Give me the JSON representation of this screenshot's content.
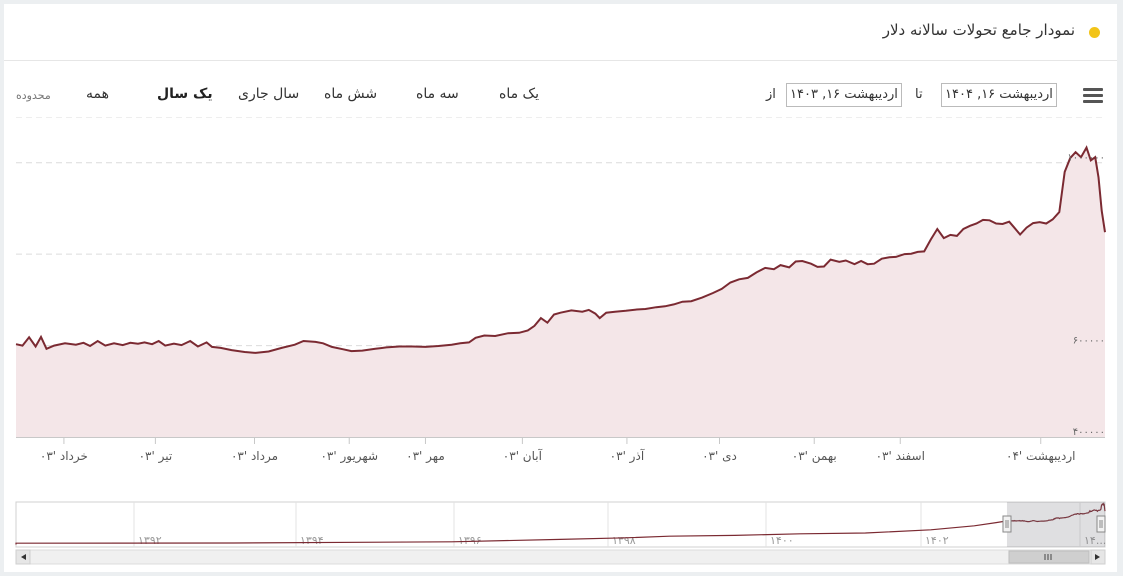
{
  "header": {
    "title": "نمودار جامع تحولات سالانه دلار",
    "dot_color": "#f2c418"
  },
  "toolbar": {
    "zoom_label": "محدوده",
    "buttons": [
      "همه",
      "یک سال",
      "سال جاری",
      "شش ماه",
      "سه ماه",
      "یک ماه"
    ],
    "active_button": "یک سال",
    "from_label": "از",
    "to_label": "تا",
    "from_value": "اردیبهشت ۱۶, ۱۴۰۳",
    "to_value": "اردیبهشت ۱۶, ۱۴۰۴",
    "menu_icon": "hamburger-menu-icon"
  },
  "chart_data": {
    "type": "area",
    "title": "",
    "ylim": [
      400000,
      1100000
    ],
    "y_ticks": [
      400000,
      600000,
      800000,
      1000000
    ],
    "y_tick_labels": [
      "۴۰۰۰۰۰",
      "۶۰۰۰۰۰",
      "",
      "۱۰۰۰۰۰۰"
    ],
    "x_tick_labels": [
      "خرداد '۰۳",
      "تیر '۰۳",
      "مرداد '۰۳",
      "شهریور '۰۳",
      "مهر '۰۳",
      "آبان '۰۳",
      "آذر '۰۳",
      "دی '۰۳",
      "بهمن '۰۳",
      "اسفند '۰۳",
      "اردیبهشت '۰۴"
    ],
    "x_tick_pos": [
      0.044,
      0.128,
      0.219,
      0.306,
      0.376,
      0.465,
      0.561,
      0.646,
      0.733,
      0.812,
      0.941
    ],
    "grid": true,
    "line_color": "#7b2a32",
    "fill_color": "#f4e6e8",
    "series": [
      {
        "values": [
          [
            0.0,
            603000
          ],
          [
            0.006,
            600000
          ],
          [
            0.012,
            618000
          ],
          [
            0.018,
            598000
          ],
          [
            0.023,
            619000
          ],
          [
            0.028,
            593000
          ],
          [
            0.035,
            600000
          ],
          [
            0.045,
            605000
          ],
          [
            0.055,
            602000
          ],
          [
            0.062,
            606000
          ],
          [
            0.068,
            599000
          ],
          [
            0.075,
            610000
          ],
          [
            0.082,
            600000
          ],
          [
            0.09,
            605000
          ],
          [
            0.098,
            601000
          ],
          [
            0.105,
            606000
          ],
          [
            0.112,
            604000
          ],
          [
            0.118,
            607000
          ],
          [
            0.125,
            603000
          ],
          [
            0.131,
            610000
          ],
          [
            0.137,
            600000
          ],
          [
            0.145,
            604000
          ],
          [
            0.152,
            601000
          ],
          [
            0.16,
            610000
          ],
          [
            0.167,
            598000
          ],
          [
            0.175,
            607000
          ],
          [
            0.18,
            597000
          ],
          [
            0.188,
            595000
          ],
          [
            0.198,
            590000
          ],
          [
            0.21,
            586000
          ],
          [
            0.22,
            584000
          ],
          [
            0.232,
            587000
          ],
          [
            0.244,
            595000
          ],
          [
            0.256,
            602000
          ],
          [
            0.264,
            610000
          ],
          [
            0.275,
            608000
          ],
          [
            0.282,
            605000
          ],
          [
            0.29,
            597000
          ],
          [
            0.3,
            592000
          ],
          [
            0.308,
            588000
          ],
          [
            0.318,
            589000
          ],
          [
            0.33,
            593000
          ],
          [
            0.34,
            596000
          ],
          [
            0.352,
            598000
          ],
          [
            0.364,
            598000
          ],
          [
            0.376,
            597000
          ],
          [
            0.388,
            599000
          ],
          [
            0.4,
            602000
          ],
          [
            0.408,
            605000
          ],
          [
            0.416,
            607000
          ],
          [
            0.422,
            617000
          ],
          [
            0.43,
            622000
          ],
          [
            0.44,
            621000
          ],
          [
            0.452,
            627000
          ],
          [
            0.462,
            628000
          ],
          [
            0.47,
            633000
          ],
          [
            0.476,
            643000
          ],
          [
            0.482,
            660000
          ],
          [
            0.488,
            650000
          ],
          [
            0.494,
            668000
          ],
          [
            0.5,
            672000
          ],
          [
            0.51,
            677000
          ],
          [
            0.52,
            674000
          ],
          [
            0.526,
            678000
          ],
          [
            0.532,
            670000
          ],
          [
            0.536,
            660000
          ],
          [
            0.542,
            672000
          ],
          [
            0.55,
            674000
          ],
          [
            0.56,
            676000
          ],
          [
            0.57,
            679000
          ],
          [
            0.578,
            680000
          ],
          [
            0.588,
            684000
          ],
          [
            0.596,
            686000
          ],
          [
            0.604,
            690000
          ],
          [
            0.612,
            696000
          ],
          [
            0.62,
            697000
          ],
          [
            0.63,
            705000
          ],
          [
            0.64,
            715000
          ],
          [
            0.648,
            724000
          ],
          [
            0.656,
            738000
          ],
          [
            0.664,
            745000
          ],
          [
            0.672,
            748000
          ],
          [
            0.68,
            760000
          ],
          [
            0.688,
            770000
          ],
          [
            0.696,
            767000
          ],
          [
            0.702,
            776000
          ],
          [
            0.71,
            771000
          ],
          [
            0.716,
            784000
          ],
          [
            0.722,
            785000
          ],
          [
            0.73,
            779000
          ],
          [
            0.736,
            772000
          ],
          [
            0.742,
            773000
          ],
          [
            0.748,
            788000
          ],
          [
            0.756,
            783000
          ],
          [
            0.762,
            786000
          ],
          [
            0.77,
            778000
          ],
          [
            0.776,
            785000
          ],
          [
            0.782,
            778000
          ],
          [
            0.788,
            779000
          ],
          [
            0.795,
            790000
          ],
          [
            0.802,
            793000
          ],
          [
            0.808,
            794000
          ],
          [
            0.816,
            800000
          ],
          [
            0.822,
            801000
          ],
          [
            0.828,
            805000
          ],
          [
            0.834,
            806000
          ],
          [
            0.84,
            832000
          ],
          [
            0.846,
            855000
          ],
          [
            0.852,
            835000
          ],
          [
            0.858,
            842000
          ],
          [
            0.864,
            840000
          ],
          [
            0.87,
            855000
          ],
          [
            0.876,
            862000
          ],
          [
            0.882,
            867000
          ],
          [
            0.888,
            875000
          ],
          [
            0.894,
            874000
          ],
          [
            0.9,
            867000
          ],
          [
            0.906,
            866000
          ],
          [
            0.912,
            871000
          ],
          [
            0.916,
            860000
          ],
          [
            0.922,
            843000
          ],
          [
            0.928,
            858000
          ],
          [
            0.934,
            868000
          ],
          [
            0.94,
            870000
          ],
          [
            0.946,
            867000
          ],
          [
            0.952,
            876000
          ],
          [
            0.958,
            892000
          ],
          [
            0.963,
            980000
          ],
          [
            0.968,
            1010000
          ],
          [
            0.973,
            1023000
          ],
          [
            0.978,
            1012000
          ],
          [
            0.983,
            1033000
          ],
          [
            0.987,
            1005000
          ],
          [
            0.991,
            1012000
          ],
          [
            0.994,
            968000
          ],
          [
            0.997,
            895000
          ],
          [
            1.0,
            848000
          ]
        ]
      }
    ]
  },
  "navigator": {
    "labels": [
      "۱۳۹۲",
      "۱۳۹۴",
      "۱۳۹۶",
      "۱۳۹۸",
      "۱۴۰۰",
      "۱۴۰۲",
      "۱۴..."
    ],
    "scroll_left_icon": "arrow-left-icon",
    "scroll_right_icon": "arrow-right-icon",
    "grip_icon": "grip-icon",
    "selected_range": [
      0.91,
      1.0
    ]
  }
}
